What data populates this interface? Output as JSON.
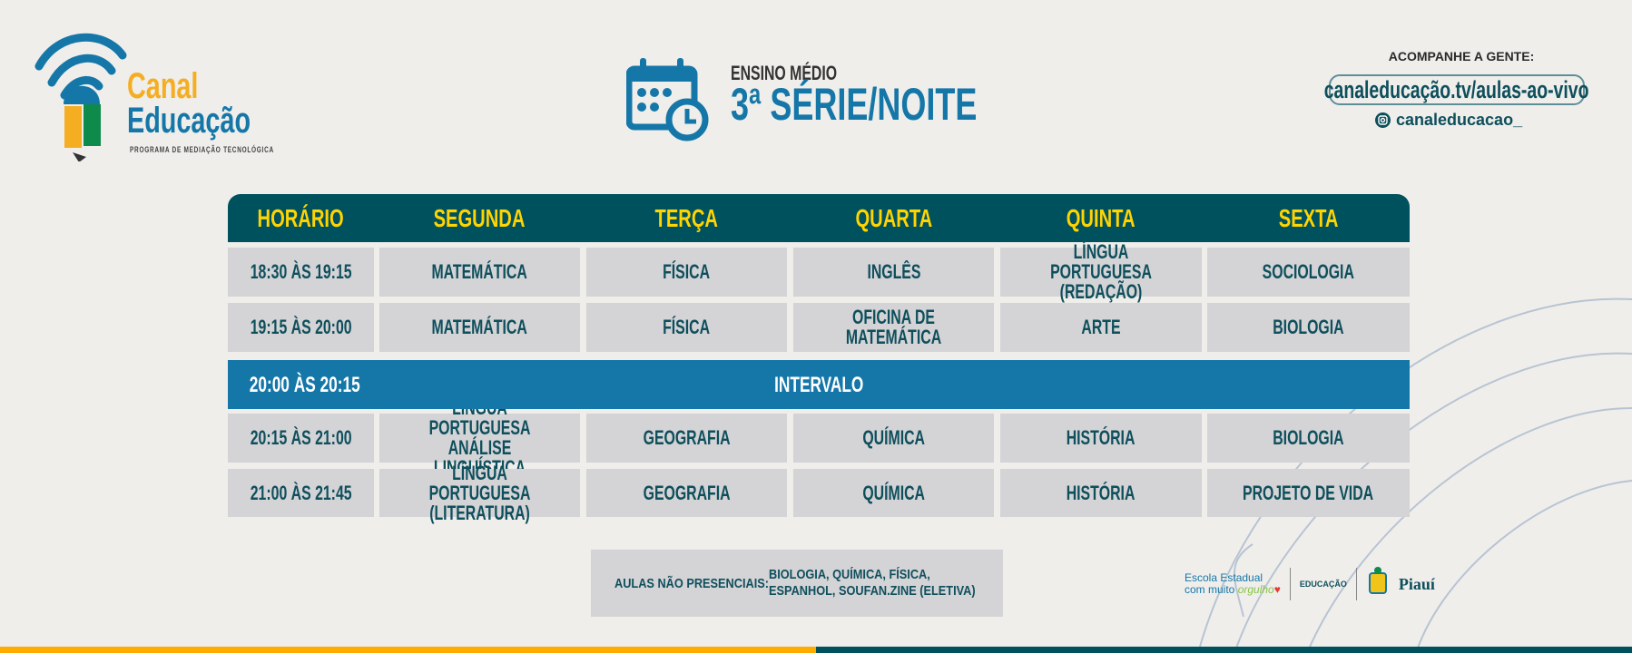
{
  "logo": {
    "line1": "Canal",
    "line2": "Educação",
    "tagline": "PROGRAMA DE MEDIAÇÃO TECNOLÓGICA"
  },
  "title": {
    "level": "ENSINO MÉDIO",
    "grade": "3ª SÉRIE/NOITE",
    "icon": "calendar-clock-icon"
  },
  "social": {
    "heading": "ACOMPANHE A GENTE:",
    "url": "canaleducação.tv/aulas-ao-vivo",
    "instagram": "canaleducacao_"
  },
  "colors": {
    "header": "#00515e",
    "header_text": "#ffd400",
    "cell": "#d4d3d6",
    "interval": "#1577a8",
    "orange": "#ffab00"
  },
  "table": {
    "headers": [
      "HORÁRIO",
      "SEGUNDA",
      "TERÇA",
      "QUARTA",
      "QUINTA",
      "SEXTA"
    ],
    "rows": [
      [
        "18:30 ÀS 19:15",
        "MATEMÁTICA",
        "FÍSICA",
        "INGLÊS",
        "LÍNGUA PORTUGUESA\n(REDAÇÃO)",
        "SOCIOLOGIA"
      ],
      [
        "19:15 ÀS 20:00",
        "MATEMÁTICA",
        "FÍSICA",
        "OFICINA DE MATEMÁTICA",
        "ARTE",
        "BIOLOGIA"
      ],
      [
        "20:15 ÀS 21:00",
        "LÍNGUA PORTUGUESA\nANÁLISE LINGUÍSTICA",
        "GEOGRAFIA",
        "QUÍMICA",
        "HISTÓRIA",
        "BIOLOGIA"
      ],
      [
        "21:00 ÀS 21:45",
        "LÍNGUA PORTUGUESA\n(LITERATURA)",
        "GEOGRAFIA",
        "QUÍMICA",
        "HISTÓRIA",
        "PROJETO DE VIDA"
      ]
    ],
    "interval": {
      "time": "20:00 ÀS 20:15",
      "label": "INTERVALO"
    }
  },
  "note": {
    "label": "AULAS NÃO PRESENCIAIS:",
    "line1": "BIOLOGIA, QUÍMICA, FÍSICA,",
    "line2": "ESPANHOL,  SOUFAN.ZINE (ELETIVA)"
  },
  "partners": {
    "escola1": "Escola Estadual",
    "escola2": "com muito",
    "orgulho": "orgulho",
    "educacao": "EDUCAÇÃO",
    "piaui": "Piauí"
  }
}
